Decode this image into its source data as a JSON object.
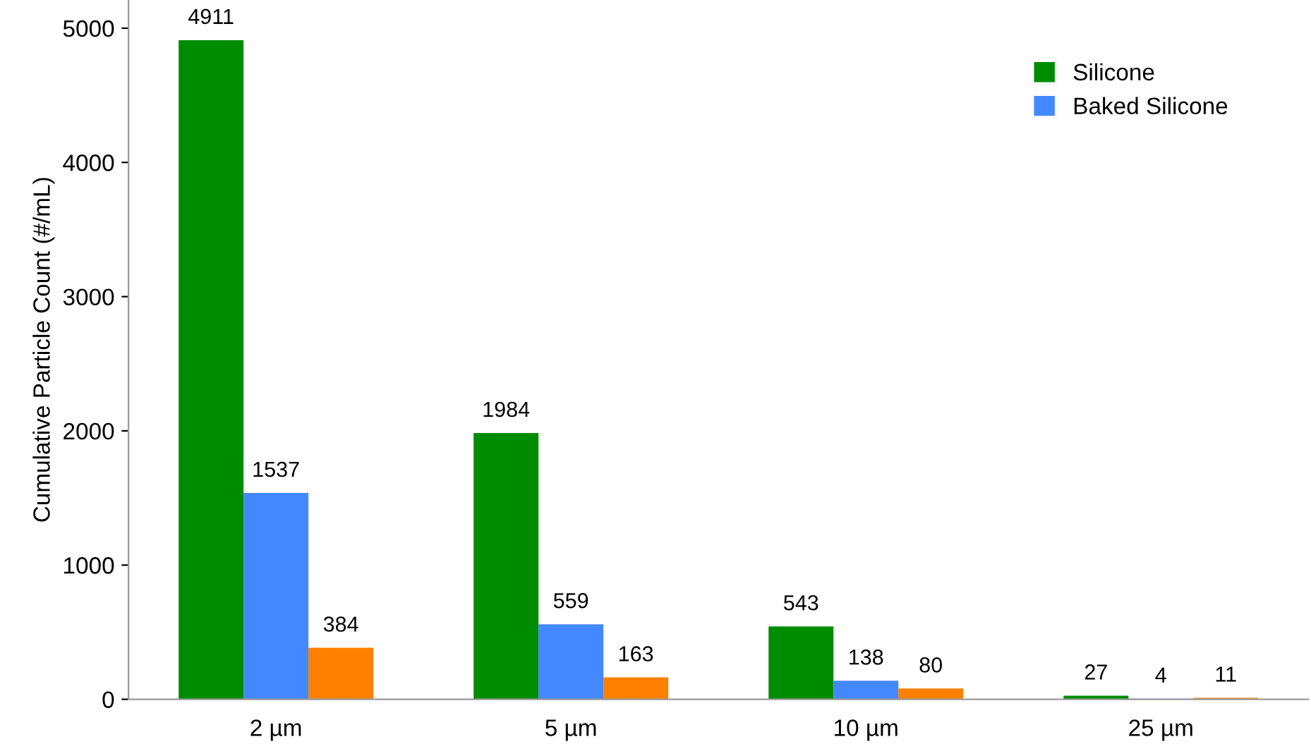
{
  "chart_data": {
    "type": "bar",
    "ylabel": "Cumulative Particle Count (#/mL)",
    "categories": [
      "2 µm",
      "5 µm",
      "10 µm",
      "25 µm"
    ],
    "series": [
      {
        "name": "Silicone",
        "color": "#008c00",
        "values": [
          4911,
          1984,
          543,
          27
        ]
      },
      {
        "name": "Baked Silicone",
        "color": "#4488ff",
        "values": [
          1537,
          559,
          138,
          4
        ]
      },
      {
        "color": "#ff8000",
        "values": [
          384,
          163,
          80,
          11
        ]
      }
    ],
    "ylim": [
      0,
      5210
    ],
    "yticks": [
      0,
      1000,
      2000,
      3000,
      4000,
      5000
    ],
    "grid": false,
    "legend": "top right",
    "data_labels": true
  }
}
